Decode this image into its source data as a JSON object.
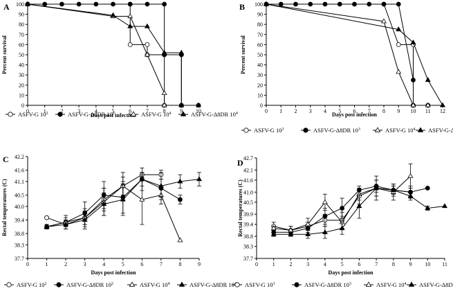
{
  "chart_data": [
    {
      "panel": "A",
      "type": "line",
      "xlabel": "Days post infection",
      "ylabel": "Percent survival",
      "xlim": [
        0,
        10
      ],
      "ylim": [
        0,
        100
      ],
      "xticks": [
        "0",
        "1",
        "2",
        "3",
        "4",
        "5",
        "6",
        "7",
        "8",
        "9",
        "10"
      ],
      "yticks": [
        "0",
        "10",
        "20",
        "30",
        "40",
        "50",
        "60",
        "70",
        "80",
        "90",
        "100"
      ],
      "series": [
        {
          "name": "ASFV-G 10^2",
          "legend": [
            "ASFV-G 10",
            "2",
            ""
          ],
          "marker": "circle-open",
          "points": [
            [
              0,
              100
            ],
            [
              6,
              100
            ],
            [
              6,
              60
            ],
            [
              7,
              60
            ],
            [
              7,
              50
            ],
            [
              8,
              50
            ],
            [
              8,
              0
            ],
            [
              9,
              0
            ]
          ]
        },
        {
          "name": "ASFV-G-Δ8DR 10^2",
          "legend": [
            "ASFV-G-Δ8DR 10",
            "2",
            ""
          ],
          "marker": "circle-filled",
          "points": [
            [
              0,
              100
            ],
            [
              1,
              100
            ],
            [
              2,
              100
            ],
            [
              3,
              100
            ],
            [
              4,
              100
            ],
            [
              5,
              100
            ],
            [
              6,
              100
            ],
            [
              7,
              100
            ],
            [
              8,
              100
            ],
            [
              8,
              50
            ],
            [
              9,
              50
            ],
            [
              9,
              0
            ],
            [
              10,
              0
            ]
          ]
        },
        {
          "name": "ASFV-G 10^4",
          "legend": [
            "ASFV-G 10",
            "4",
            ""
          ],
          "marker": "triangle-open",
          "points": [
            [
              0,
              100
            ],
            [
              5,
              88
            ],
            [
              6,
              88
            ],
            [
              7,
              50
            ],
            [
              8,
              12
            ],
            [
              8,
              0
            ],
            [
              9,
              0
            ]
          ]
        },
        {
          "name": "ASFV-G-Δ8DR 10^4",
          "legend": [
            "ASFV-G-Δ8DR 10",
            "4",
            ""
          ],
          "marker": "triangle-filled",
          "points": [
            [
              0,
              100
            ],
            [
              5,
              89
            ],
            [
              6,
              78
            ],
            [
              7,
              78
            ],
            [
              8,
              52
            ],
            [
              9,
              52
            ],
            [
              9,
              0
            ],
            [
              10,
              0
            ]
          ]
        }
      ]
    },
    {
      "panel": "B",
      "type": "line",
      "xlabel": "Days post infection",
      "ylabel": "Percent survival",
      "xlim": [
        0,
        12
      ],
      "ylim": [
        0,
        100
      ],
      "xticks": [
        "0",
        "1",
        "2",
        "3",
        "4",
        "5",
        "6",
        "7",
        "8",
        "9",
        "10",
        "11",
        "12"
      ],
      "yticks": [
        "0",
        "10",
        "20",
        "30",
        "40",
        "50",
        "60",
        "70",
        "80",
        "90",
        "100"
      ],
      "series": [
        {
          "name": "ASFV-G 10^3",
          "legend": [
            "ASFV-G 10",
            "3",
            ""
          ],
          "marker": "circle-open",
          "points": [
            [
              0,
              100
            ],
            [
              8,
              100
            ],
            [
              9,
              60
            ],
            [
              10,
              60
            ],
            [
              10,
              0
            ],
            [
              11,
              0
            ]
          ]
        },
        {
          "name": "ASFV-G-Δ8DR 10^3",
          "legend": [
            "ASFV-G-Δ8DR 10",
            "3",
            ""
          ],
          "marker": "circle-filled",
          "points": [
            [
              0,
              100
            ],
            [
              1,
              100
            ],
            [
              2,
              100
            ],
            [
              3,
              100
            ],
            [
              4,
              100
            ],
            [
              5,
              100
            ],
            [
              6,
              100
            ],
            [
              7,
              100
            ],
            [
              8,
              100
            ],
            [
              9,
              100
            ],
            [
              10,
              25
            ],
            [
              10,
              0
            ],
            [
              11,
              0
            ]
          ]
        },
        {
          "name": "ASFV-G 10^4",
          "legend": [
            "ASFV-G 10",
            "4",
            ""
          ],
          "marker": "triangle-open",
          "points": [
            [
              0,
              100
            ],
            [
              8,
              83
            ],
            [
              9,
              33
            ],
            [
              10,
              0
            ],
            [
              11,
              0
            ]
          ]
        },
        {
          "name": "ASFV-G-Δ8DR 10^4",
          "legend": [
            "ASFV-G-Δ8DR 10",
            "4",
            ""
          ],
          "marker": "triangle-filled",
          "points": [
            [
              0,
              100
            ],
            [
              9,
              75
            ],
            [
              10,
              62
            ],
            [
              11,
              25
            ],
            [
              12,
              0
            ]
          ]
        }
      ]
    },
    {
      "panel": "C",
      "type": "line",
      "xlabel": "Days post infection",
      "ylabel": "Rectal temperatures (C)",
      "xlim": [
        0,
        9
      ],
      "ylim": [
        37.7,
        42.2
      ],
      "xticks": [
        "0",
        "1",
        "2",
        "3",
        "4",
        "5",
        "6",
        "7",
        "8",
        "9"
      ],
      "ytick_values": [
        37.7,
        38.3,
        38.8,
        39.4,
        40.0,
        40.5,
        41.1,
        41.6,
        42.2
      ],
      "yticks": [
        "37.7",
        "38.3",
        "38.8",
        "39.4",
        "40.0",
        "40.5",
        "41.1",
        "41.6",
        "42.2"
      ],
      "series": [
        {
          "name": "ASFV-G 10^2",
          "legend": [
            "ASFV-G 10",
            "2",
            ""
          ],
          "marker": "circle-open",
          "points": [
            [
              1,
              39.5,
              0.05
            ],
            [
              2,
              39.2,
              0.2
            ],
            [
              3,
              39.5,
              0.4
            ],
            [
              4,
              40.3,
              0.5
            ],
            [
              5,
              40.9,
              0.6
            ],
            [
              6,
              41.4,
              0.1
            ],
            [
              7,
              41.4,
              0.2
            ]
          ]
        },
        {
          "name": "ASFV-G-Δ8DR 10^2",
          "legend": [
            "ASFV-G-Δ8DR 10",
            "2",
            ""
          ],
          "marker": "circle-filled",
          "points": [
            [
              1,
              39.1,
              0.1
            ],
            [
              2,
              39.3,
              0.3
            ],
            [
              3,
              39.7,
              0.5
            ],
            [
              4,
              40.5,
              0.6
            ],
            [
              5,
              40.4,
              0.7
            ],
            [
              6,
              41.2,
              0.5
            ],
            [
              7,
              40.8,
              0.4
            ],
            [
              8,
              40.3,
              0.2
            ]
          ]
        },
        {
          "name": "ASFV-G 10^4",
          "legend": [
            "ASFV-G 10",
            "4",
            ""
          ],
          "marker": "triangle-open",
          "points": [
            [
              1,
              39.1,
              0.1
            ],
            [
              2,
              39.3,
              0.2
            ],
            [
              3,
              39.5,
              0.3
            ],
            [
              4,
              40.2,
              0.6
            ],
            [
              5,
              40.9,
              0.4
            ],
            [
              6,
              40.3,
              1.1
            ],
            [
              7,
              40.5,
              0.4
            ],
            [
              8,
              38.5,
              0
            ]
          ]
        },
        {
          "name": "ASFV-G-Δ8DR 10^4",
          "legend": [
            "ASFV-G-Δ8DR 10",
            "4",
            ""
          ],
          "marker": "triangle-filled",
          "points": [
            [
              1,
              39.1,
              0.1
            ],
            [
              2,
              39.2,
              0.2
            ],
            [
              3,
              39.4,
              0.4
            ],
            [
              4,
              40.1,
              0.5
            ],
            [
              5,
              40.3,
              0.7
            ],
            [
              6,
              41.2,
              0.3
            ],
            [
              7,
              40.9,
              0.6
            ],
            [
              8,
              41.1,
              0.3
            ],
            [
              9,
              41.2,
              0.3
            ]
          ]
        }
      ]
    },
    {
      "panel": "D",
      "type": "line",
      "xlabel": "Days post infection",
      "ylabel": "Rectal temperatures (C)",
      "xlim": [
        0,
        11
      ],
      "ylim": [
        37.7,
        42.7
      ],
      "xticks": [
        "0",
        "1",
        "2",
        "3",
        "4",
        "5",
        "6",
        "7",
        "8",
        "9",
        "10",
        "11"
      ],
      "ytick_values": [
        37.7,
        38.3,
        38.8,
        39.4,
        39.9,
        40.5,
        41.0,
        41.6,
        42.1,
        42.7
      ],
      "yticks": [
        "37.7",
        "38.3",
        "38.8",
        "39.4",
        "39.9",
        "40.5",
        "41.0",
        "41.6",
        "42.1",
        "42.7"
      ],
      "series": [
        {
          "name": "ASFV-G 10^3",
          "legend": [
            "ASFV-G 10",
            "3",
            ""
          ],
          "marker": "circle-open",
          "points": [
            [
              1,
              39.3,
              0.2
            ],
            [
              2,
              39.1,
              0.2
            ],
            [
              3,
              39.3,
              0.2
            ],
            [
              4,
              39.6,
              0.3
            ],
            [
              5,
              39.6,
              0.4
            ],
            [
              6,
              40.8,
              0.4
            ],
            [
              7,
              41.2,
              0.4
            ],
            [
              8,
              41.1,
              0.2
            ],
            [
              9,
              41.0,
              0.3
            ]
          ]
        },
        {
          "name": "ASFV-G-Δ8DR 10^3",
          "legend": [
            "ASFV-G-Δ8DR 10",
            "3",
            ""
          ],
          "marker": "circle-filled",
          "points": [
            [
              1,
              39.0,
              0.1
            ],
            [
              2,
              39.0,
              0.1
            ],
            [
              3,
              39.2,
              0.2
            ],
            [
              4,
              39.8,
              0.4
            ],
            [
              5,
              40.2,
              0.5
            ],
            [
              6,
              41.1,
              0.2
            ],
            [
              7,
              41.3,
              0.3
            ],
            [
              8,
              41.1,
              0.2
            ],
            [
              9,
              41.0,
              0.2
            ],
            [
              10,
              41.2,
              0
            ]
          ]
        },
        {
          "name": "ASFV-G 10^4",
          "legend": [
            "ASFV-G 10",
            "4",
            ""
          ],
          "marker": "triangle-open",
          "points": [
            [
              1,
              39.2,
              0.1
            ],
            [
              2,
              39.1,
              0.2
            ],
            [
              3,
              39.4,
              0.3
            ],
            [
              4,
              40.5,
              0.4
            ],
            [
              5,
              39.5,
              0.3
            ],
            [
              6,
              40.9,
              0.3
            ],
            [
              7,
              41.2,
              0.6
            ],
            [
              8,
              41.0,
              0.4
            ],
            [
              9,
              41.8,
              0.6
            ]
          ]
        },
        {
          "name": "ASFV-G-Δ8DR 10^4",
          "legend": [
            "ASFV-G-Δ8DR 10",
            "4",
            ""
          ],
          "marker": "triangle-filled",
          "points": [
            [
              1,
              38.9,
              0.1
            ],
            [
              2,
              38.9,
              0.1
            ],
            [
              3,
              38.9,
              0.2
            ],
            [
              4,
              39.0,
              0.3
            ],
            [
              5,
              39.2,
              0.3
            ],
            [
              6,
              40.3,
              0.6
            ],
            [
              7,
              41.2,
              0.4
            ],
            [
              8,
              41.1,
              0.3
            ],
            [
              9,
              40.8,
              0.2
            ],
            [
              10,
              40.2,
              0.1
            ],
            [
              11,
              40.3,
              0
            ]
          ]
        }
      ]
    }
  ]
}
